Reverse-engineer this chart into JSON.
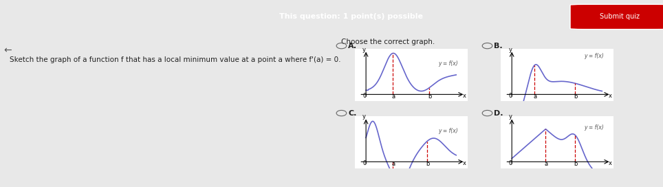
{
  "title_text": "This question: 1 point(s) possible",
  "submit_text": "Submit quiz",
  "question_text": "Sketch the graph of a function f that has a local minimum value at a point a where f'(a) = 0.",
  "choose_text": "Choose the correct graph.",
  "header_bg": "#8B0000",
  "bg_color": "#f0f0f0",
  "panel_bg": "#ffffff",
  "curve_color": "#6666cc",
  "dashed_color": "#cc0000",
  "label_color": "#333333",
  "options": [
    "A.",
    "B.",
    "C.",
    "D."
  ]
}
